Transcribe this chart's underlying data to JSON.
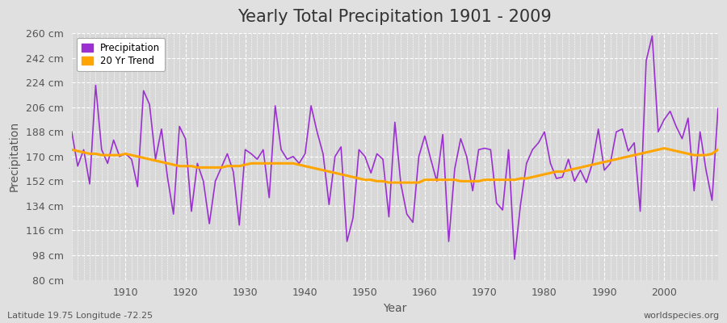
{
  "title": "Yearly Total Precipitation 1901 - 2009",
  "xlabel": "Year",
  "ylabel": "Precipitation",
  "subtitle_left": "Latitude 19.75 Longitude -72.25",
  "subtitle_right": "worldspecies.org",
  "ylim": [
    80,
    260
  ],
  "yticks": [
    80,
    98,
    116,
    134,
    152,
    170,
    188,
    206,
    224,
    242,
    260
  ],
  "ytick_labels": [
    "80 cm",
    "98 cm",
    "116 cm",
    "134 cm",
    "152 cm",
    "170 cm",
    "188 cm",
    "206 cm",
    "224 cm",
    "242 cm",
    "260 cm"
  ],
  "xlim": [
    1901,
    2009
  ],
  "years": [
    1901,
    1902,
    1903,
    1904,
    1905,
    1906,
    1907,
    1908,
    1909,
    1910,
    1911,
    1912,
    1913,
    1914,
    1915,
    1916,
    1917,
    1918,
    1919,
    1920,
    1921,
    1922,
    1923,
    1924,
    1925,
    1926,
    1927,
    1928,
    1929,
    1930,
    1931,
    1932,
    1933,
    1934,
    1935,
    1936,
    1937,
    1938,
    1939,
    1940,
    1941,
    1942,
    1943,
    1944,
    1945,
    1946,
    1947,
    1948,
    1949,
    1950,
    1951,
    1952,
    1953,
    1954,
    1955,
    1956,
    1957,
    1958,
    1959,
    1960,
    1961,
    1962,
    1963,
    1964,
    1965,
    1966,
    1967,
    1968,
    1969,
    1970,
    1971,
    1972,
    1973,
    1974,
    1975,
    1976,
    1977,
    1978,
    1979,
    1980,
    1981,
    1982,
    1983,
    1984,
    1985,
    1986,
    1987,
    1988,
    1989,
    1990,
    1991,
    1992,
    1993,
    1994,
    1995,
    1996,
    1997,
    1998,
    1999,
    2000,
    2001,
    2002,
    2003,
    2004,
    2005,
    2006,
    2007,
    2008,
    2009
  ],
  "precipitation": [
    188,
    163,
    175,
    150,
    222,
    175,
    165,
    182,
    170,
    172,
    168,
    148,
    218,
    208,
    168,
    190,
    155,
    128,
    192,
    183,
    130,
    165,
    152,
    121,
    152,
    162,
    172,
    159,
    120,
    175,
    172,
    168,
    175,
    140,
    207,
    175,
    168,
    170,
    165,
    172,
    207,
    188,
    172,
    135,
    170,
    177,
    108,
    125,
    175,
    170,
    158,
    172,
    168,
    126,
    195,
    150,
    128,
    122,
    170,
    185,
    168,
    152,
    186,
    108,
    161,
    183,
    170,
    145,
    175,
    176,
    175,
    136,
    131,
    175,
    95,
    135,
    165,
    175,
    180,
    188,
    165,
    154,
    155,
    168,
    152,
    160,
    151,
    165,
    190,
    160,
    165,
    188,
    190,
    174,
    180,
    130,
    240,
    258,
    188,
    197,
    203,
    192,
    183,
    198,
    145,
    188,
    160,
    138,
    205
  ],
  "trend": [
    175,
    174,
    173,
    172,
    172,
    171,
    171,
    171,
    171,
    172,
    171,
    170,
    169,
    168,
    167,
    166,
    165,
    164,
    163,
    163,
    163,
    162,
    162,
    162,
    162,
    162,
    163,
    163,
    163,
    164,
    165,
    165,
    165,
    165,
    165,
    165,
    165,
    165,
    164,
    163,
    162,
    161,
    160,
    159,
    158,
    157,
    156,
    155,
    154,
    153,
    153,
    152,
    152,
    151,
    151,
    151,
    151,
    151,
    151,
    153,
    153,
    153,
    153,
    153,
    153,
    152,
    152,
    152,
    152,
    153,
    153,
    153,
    153,
    153,
    153,
    154,
    154,
    155,
    156,
    157,
    158,
    159,
    159,
    160,
    161,
    162,
    163,
    164,
    165,
    166,
    167,
    168,
    169,
    170,
    171,
    172,
    173,
    174,
    175,
    176,
    175,
    174,
    173,
    172,
    171,
    171,
    171,
    172,
    175
  ],
  "precip_color": "#9b30d0",
  "trend_color": "#FFA500",
  "bg_color": "#e0e0e0",
  "plot_bg_color": "#d8d8d8",
  "grid_color": "#ffffff",
  "title_fontsize": 15,
  "axis_fontsize": 9,
  "label_fontsize": 10
}
